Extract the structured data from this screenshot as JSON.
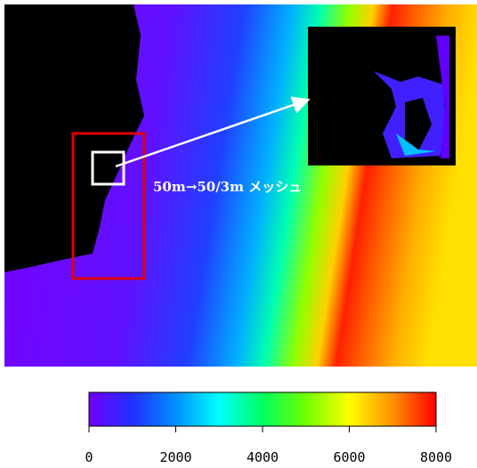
{
  "annotation": "50m→50/3m メッシュ",
  "colorbar": {
    "lim": [
      0,
      8000
    ],
    "ticks": [
      0,
      2000,
      4000,
      6000,
      8000
    ],
    "colors": [
      "#7000ff",
      "#2030ff",
      "#0090ff",
      "#00ffff",
      "#00ff60",
      "#70ff00",
      "#ffff00",
      "#ff9000",
      "#ff0000"
    ]
  }
}
